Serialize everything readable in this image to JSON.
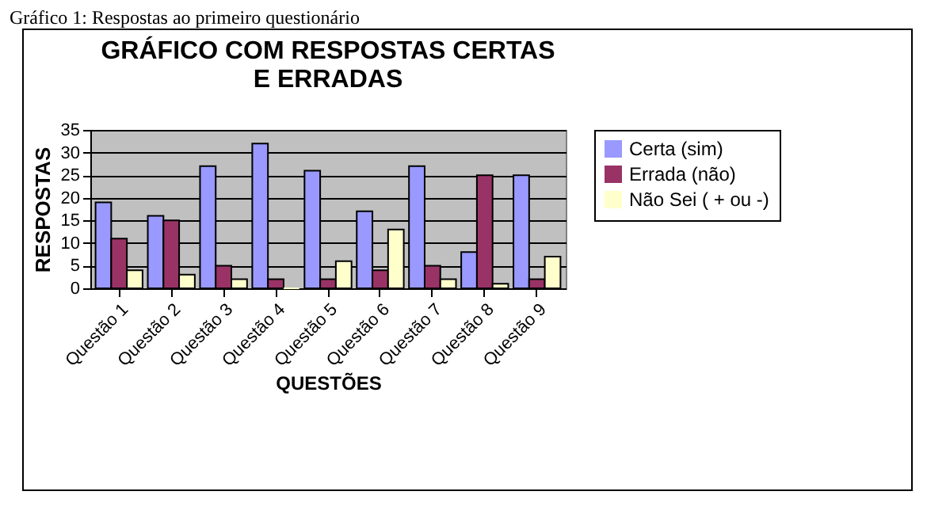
{
  "chart_data": {
    "type": "bar",
    "title": "GRÁFICO COM RESPOSTAS CERTAS E ERRADAS",
    "xlabel": "QUESTÕES",
    "ylabel": "RESPOSTAS",
    "annotations": [
      "Gráfico 1: Respostas ao primeiro questionário"
    ],
    "categories": [
      "Questão 1",
      "Questão 2",
      "Questão 3",
      "Questão 4",
      "Questão 5",
      "Questão 6",
      "Questão 7",
      "Questão 8",
      "Questão 9"
    ],
    "series": [
      {
        "name": "Certa (sim)",
        "color": "#9999ff",
        "values": [
          19,
          16,
          27,
          32,
          26,
          17,
          27,
          8,
          25
        ]
      },
      {
        "name": "Errada (não)",
        "color": "#993366",
        "values": [
          11,
          15,
          5,
          2,
          2,
          4,
          5,
          25,
          2
        ]
      },
      {
        "name": "Não Sei ( + ou -)",
        "color": "#ffffcc",
        "values": [
          4,
          3,
          2,
          0,
          6,
          13,
          2,
          1,
          7
        ]
      }
    ],
    "ylim": [
      0,
      35
    ],
    "yticks": [
      0,
      5,
      10,
      15,
      20,
      25,
      30,
      35
    ],
    "grid": "y",
    "legend": "right"
  }
}
